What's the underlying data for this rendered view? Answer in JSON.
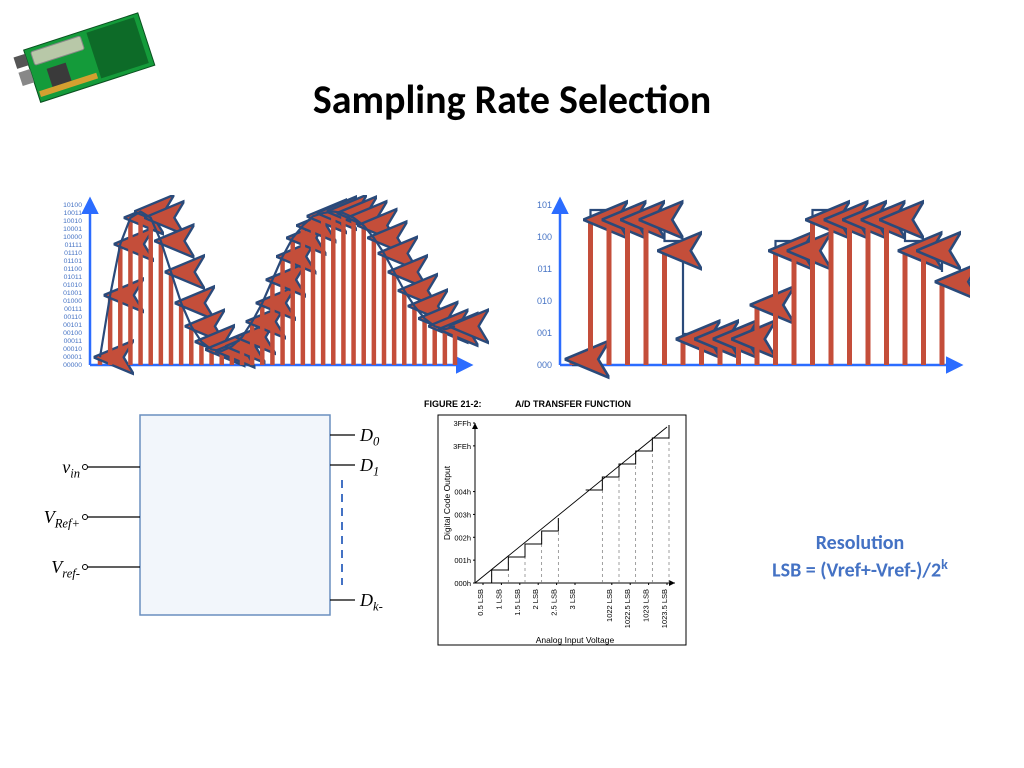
{
  "title": "Sampling Rate Selection",
  "pcb": {
    "board_color": "#149b3a",
    "chip_color": "#3a3a3a",
    "lcd_color": "#b8c8a8",
    "proto_color": "#0d6b28"
  },
  "chart_left": {
    "type": "sampled-wave",
    "axis_color": "#2b6cff",
    "arrow_fill": "#c44e3a",
    "arrow_stroke": "#2a4a7a",
    "line_color": "#2a4a7a",
    "label_color": "#4472c4",
    "ylabels": [
      "10100",
      "10011",
      "10010",
      "10001",
      "10000",
      "01111",
      "01110",
      "01101",
      "01100",
      "01011",
      "01010",
      "01001",
      "01000",
      "00111",
      "00110",
      "00101",
      "00100",
      "00011",
      "00010",
      "00001",
      "00000"
    ],
    "wave": [
      0.05,
      0.45,
      0.78,
      0.95,
      0.99,
      0.95,
      0.8,
      0.6,
      0.4,
      0.25,
      0.15,
      0.1,
      0.09,
      0.12,
      0.18,
      0.28,
      0.4,
      0.55,
      0.7,
      0.82,
      0.9,
      0.96,
      0.98,
      0.99,
      0.98,
      0.95,
      0.9,
      0.82,
      0.72,
      0.6,
      0.48,
      0.38,
      0.3,
      0.25,
      0.23,
      0.25
    ]
  },
  "chart_right": {
    "type": "quantized-wave",
    "axis_color": "#2b6cff",
    "arrow_fill": "#c44e3a",
    "arrow_stroke": "#2a4a7a",
    "line_color": "#2a4a7a",
    "label_color": "#4472c4",
    "ylabels": [
      "101",
      "100",
      "011",
      "010",
      "001",
      "000"
    ],
    "steps": [
      0.05,
      0.95,
      0.95,
      0.95,
      0.95,
      0.75,
      0.18,
      0.18,
      0.18,
      0.18,
      0.4,
      0.75,
      0.75,
      0.95,
      0.95,
      0.95,
      0.95,
      0.95,
      0.75,
      0.75,
      0.55
    ],
    "step_levels": [
      0,
      5,
      5,
      5,
      5,
      4,
      1,
      1,
      1,
      1,
      2,
      4,
      4,
      5,
      5,
      5,
      5,
      5,
      4,
      4,
      3
    ]
  },
  "adc": {
    "box_fill": "#f2f6fb",
    "box_stroke": "#6a8fbf",
    "dash_color": "#4472c4",
    "inputs": [
      {
        "label_html": "v<sub>in</sub>"
      },
      {
        "label_html": "V<sub>Ref+</sub>"
      },
      {
        "label_html": "V<sub>ref-</sub>"
      }
    ],
    "outputs": [
      {
        "label_html": "D<sub>0</sub>"
      },
      {
        "label_html": "D<sub>1</sub>"
      },
      {
        "label_html": "D<sub>k-</sub>"
      }
    ]
  },
  "transfer_function": {
    "title": "FIGURE 21-2:",
    "subtitle": "A/D TRANSFER FUNCTION",
    "ylabel": "Digital Code Output",
    "xlabel": "Analog Input Voltage",
    "yticks": [
      "3FFh",
      "3FEh",
      "",
      "004h",
      "003h",
      "002h",
      "001h",
      "000h"
    ],
    "xticks": [
      "0.5 LSB",
      "1 LSB",
      "1.5 LSB",
      "2 LSB",
      "2.5 LSB",
      "3 LSB",
      "",
      "1022 LSB",
      "1022.5 LSB",
      "1023 LSB",
      "1023.5 LSB"
    ],
    "border_color": "#000000",
    "grid_color": "#888888"
  },
  "resolution": {
    "line1": "Resolution",
    "line2_html": "LSB = (Vref+-Vref-)/2<sup>k</sup>",
    "color": "#4472c4"
  }
}
